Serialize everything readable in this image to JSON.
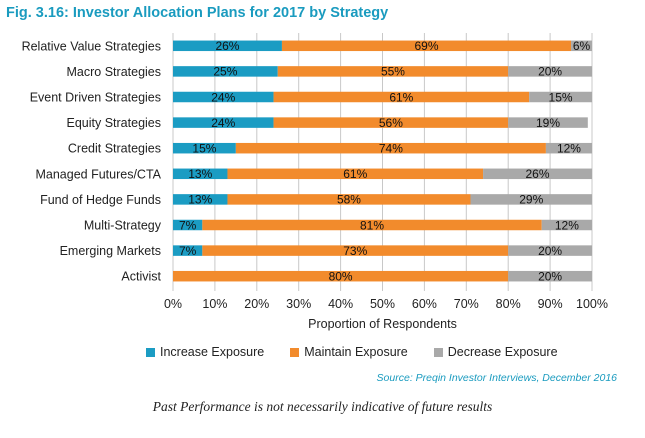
{
  "figure_title": "Fig. 3.16: Investor Allocation Plans for 2017 by Strategy",
  "source": "Source: Preqin Investor Interviews, December 2016",
  "disclaimer": "Past Performance is not necessarily indicative of future results",
  "colors": {
    "title": "#1a9bbf",
    "increase": "#1b9cc3",
    "maintain": "#f28b2c",
    "decrease": "#a9a9a9",
    "grid": "#c8c8c8"
  },
  "chart_data": {
    "type": "bar",
    "orientation": "horizontal",
    "stacked": true,
    "title": "Fig. 3.16: Investor Allocation Plans for 2017 by Strategy",
    "xlabel": "Proportion of Respondents",
    "ylabel": "",
    "xlim": [
      0,
      100
    ],
    "x_tick_labels": [
      "0%",
      "10%",
      "20%",
      "30%",
      "40%",
      "50%",
      "60%",
      "70%",
      "80%",
      "90%",
      "100%"
    ],
    "grid": "vertical gridlines on",
    "legend_position": "bottom",
    "categories": [
      "Relative Value Strategies",
      "Macro Strategies",
      "Event Driven Strategies",
      "Equity Strategies",
      "Credit Strategies",
      "Managed Futures/CTA",
      "Fund of Hedge Funds",
      "Multi-Strategy",
      "Emerging Markets",
      "Activist"
    ],
    "series": [
      {
        "name": "Increase Exposure",
        "color": "#1b9cc3",
        "values": [
          26,
          25,
          24,
          24,
          15,
          13,
          13,
          7,
          7,
          0
        ]
      },
      {
        "name": "Maintain Exposure",
        "color": "#f28b2c",
        "values": [
          69,
          55,
          61,
          56,
          74,
          61,
          58,
          81,
          73,
          80
        ]
      },
      {
        "name": "Decrease Exposure",
        "color": "#a9a9a9",
        "values": [
          6,
          20,
          15,
          19,
          12,
          26,
          29,
          12,
          20,
          20
        ]
      }
    ]
  }
}
